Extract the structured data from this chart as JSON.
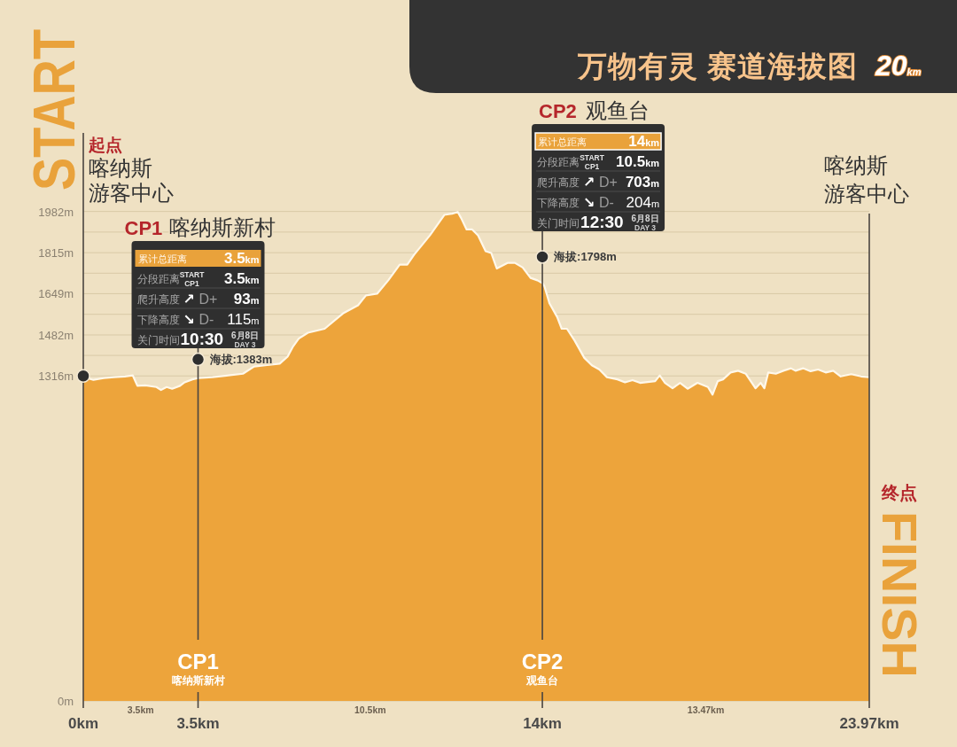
{
  "chart_data": {
    "type": "area",
    "title": "万物有灵 赛道海拔图",
    "subtitle": "20km",
    "xlim": [
      0,
      23.97
    ],
    "xticks": [
      {
        "value": 0,
        "label": "0km"
      },
      {
        "value": 3.5,
        "label": "3.5km"
      },
      {
        "value": 14,
        "label": "14km"
      },
      {
        "value": 23.97,
        "label": "23.97km"
      }
    ],
    "ylim": [
      0,
      2300
    ],
    "yticks": [
      {
        "value": 0,
        "label": "0m"
      },
      {
        "value": 1316,
        "label": "1316m"
      },
      {
        "value": 1399,
        "label": null
      },
      {
        "value": 1482,
        "label": "1482m"
      },
      {
        "value": 1565.5,
        "label": null
      },
      {
        "value": 1649,
        "label": "1649m"
      },
      {
        "value": 1732,
        "label": null
      },
      {
        "value": 1815,
        "label": "1815m"
      },
      {
        "value": 1898.5,
        "label": null
      },
      {
        "value": 1982,
        "label": "1982m"
      }
    ],
    "grid": "y",
    "series": [
      {
        "color": "#eda43b",
        "x": [
          0,
          0.31,
          0.62,
          0.94,
          1.27,
          1.51,
          1.65,
          1.89,
          2.23,
          2.37,
          2.54,
          2.71,
          2.95,
          3.09,
          3.33,
          3.5,
          3.94,
          4.42,
          4.87,
          5.21,
          5.55,
          5.99,
          6.23,
          6.4,
          6.57,
          6.85,
          7.36,
          7.94,
          8.38,
          8.62,
          8.96,
          9.3,
          9.65,
          9.88,
          10.09,
          10.57,
          10.91,
          11.01,
          11.25,
          11.42,
          11.52,
          11.69,
          11.86,
          12.04,
          12.27,
          12.44,
          12.61,
          12.95,
          13.16,
          13.4,
          13.64,
          13.85,
          14,
          14.06,
          14.22,
          14.45,
          14.59,
          14.75,
          14.98,
          15.28,
          15.51,
          15.74,
          15.97,
          16.29,
          16.52,
          16.75,
          16.98,
          17.44,
          17.58,
          17.74,
          17.97,
          18.2,
          18.43,
          18.73,
          19.05,
          19.19,
          19.35,
          19.51,
          19.74,
          19.97,
          20.2,
          20.5,
          20.66,
          20.77,
          20.89,
          21.12,
          21.35,
          21.58,
          21.72,
          21.95,
          22.18,
          22.41,
          22.64,
          22.87,
          23.1,
          23.42,
          23.72,
          23.97
        ],
        "values": [
          1312,
          1300,
          1307,
          1311,
          1314,
          1318,
          1276,
          1278,
          1271,
          1259,
          1271,
          1264,
          1276,
          1290,
          1302,
          1307,
          1311,
          1318,
          1325,
          1354,
          1359,
          1366,
          1394,
          1436,
          1467,
          1491,
          1507,
          1571,
          1602,
          1642,
          1649,
          1703,
          1767,
          1767,
          1807,
          1885,
          1949,
          1968,
          1973,
          1980,
          1956,
          1909,
          1909,
          1885,
          1821,
          1814,
          1751,
          1774,
          1774,
          1755,
          1713,
          1703,
          1692,
          1680,
          1609,
          1555,
          1507,
          1507,
          1460,
          1389,
          1359,
          1342,
          1311,
          1302,
          1290,
          1299,
          1288,
          1295,
          1318,
          1288,
          1266,
          1288,
          1264,
          1288,
          1271,
          1240,
          1295,
          1302,
          1330,
          1337,
          1325,
          1266,
          1288,
          1266,
          1330,
          1325,
          1337,
          1347,
          1337,
          1347,
          1335,
          1342,
          1330,
          1337,
          1314,
          1323,
          1314,
          1311
        ]
      },
      {
        "type": "scatter",
        "marker": "circle",
        "color": "#2e2e2e",
        "x": [
          0,
          3.5,
          14
        ],
        "values": [
          1316,
          1383,
          1798
        ],
        "value_labels": [
          null,
          "海拔:1383m",
          "海拔:1798m"
        ]
      }
    ],
    "ref_lines": [
      {
        "axis": "x",
        "value": 3.5,
        "color": "#4a4540"
      },
      {
        "axis": "x",
        "value": 14,
        "color": "#4a4540"
      },
      {
        "axis": "x",
        "value": 23.97,
        "color": "#4a4540"
      }
    ],
    "annotations": [
      "START",
      "起点",
      "喀纳斯游客中心",
      "喀纳斯游客中心",
      "终点",
      "FINISH",
      "CP1",
      "喀纳斯新村",
      "累计总距离",
      "3.5km",
      "分段距离",
      "START",
      "CP1",
      "3.5km",
      "爬升高度",
      "↗",
      "D+",
      "93m",
      "下降高度",
      "↘",
      "D-",
      "115m",
      "关门时间",
      "10:30",
      "6月8日",
      "DAY 3",
      "CP2",
      "观鱼台",
      "累计总距离",
      "14km",
      "分段距离",
      "START",
      "CP1",
      "10.5km",
      "爬升高度",
      "↗",
      "D+",
      "703m",
      "下降高度",
      "↘",
      "D-",
      "204m",
      "关门时间",
      "12:30",
      "6月8日",
      "DAY 3",
      "CP1\n喀纳斯新村",
      "CP2\n观鱼台",
      "3.5km",
      "10.5km",
      "13.47km"
    ]
  }
}
